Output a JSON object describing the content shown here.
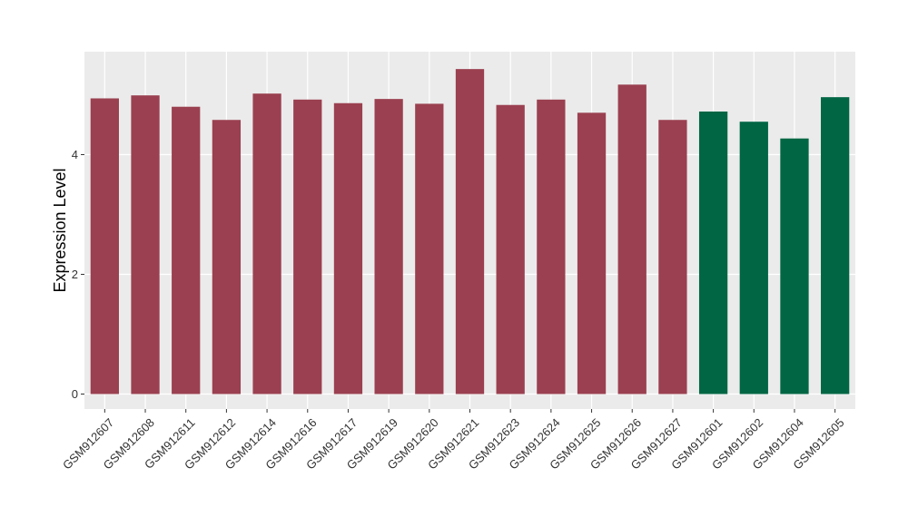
{
  "chart_data": {
    "type": "bar",
    "title": "",
    "xlabel": "",
    "ylabel": "Expression Level",
    "ylim": [
      -0.25,
      5.72
    ],
    "y_ticks": [
      0,
      2,
      4
    ],
    "y_tick_labels": [
      "0",
      "2",
      "4"
    ],
    "grid": true,
    "background": "#EBEBEB",
    "colors": {
      "group_a": "#9B4050",
      "group_b": "#006644",
      "grid": "#ffffff"
    },
    "categories": [
      "GSM912607",
      "GSM912608",
      "GSM912611",
      "GSM912612",
      "GSM912614",
      "GSM912616",
      "GSM912617",
      "GSM912619",
      "GSM912620",
      "GSM912621",
      "GSM912623",
      "GSM912624",
      "GSM912625",
      "GSM912626",
      "GSM912627",
      "GSM912601",
      "GSM912602",
      "GSM912604",
      "GSM912605"
    ],
    "values": [
      4.94,
      4.99,
      4.8,
      4.58,
      5.02,
      4.92,
      4.86,
      4.93,
      4.85,
      5.43,
      4.83,
      4.92,
      4.7,
      5.17,
      4.58,
      4.72,
      4.55,
      4.27,
      4.96
    ],
    "bar_groups": [
      "a",
      "a",
      "a",
      "a",
      "a",
      "a",
      "a",
      "a",
      "a",
      "a",
      "a",
      "a",
      "a",
      "a",
      "a",
      "b",
      "b",
      "b",
      "b"
    ]
  }
}
